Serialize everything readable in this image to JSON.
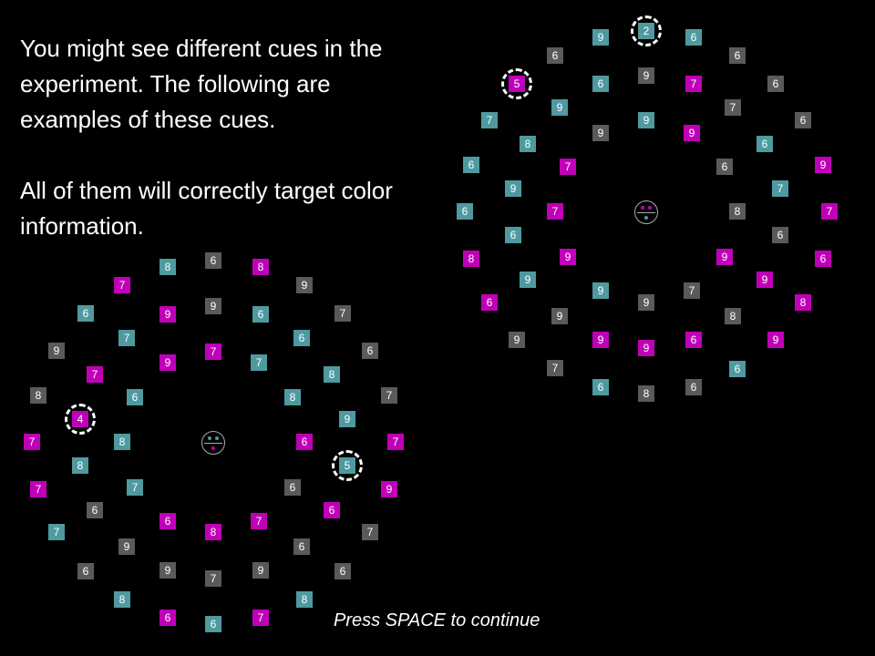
{
  "instructions": {
    "paragraph1": "You might see different cues in the experiment. The following are examples of these cues.",
    "paragraph2": "All of them will correctly target color information."
  },
  "footer": {
    "continue_prompt": "Press SPACE to continue"
  },
  "colors": {
    "background": "#000000",
    "teal": "#4e9aa0",
    "magenta": "#c000b8",
    "gray": "#5a5a5a",
    "text": "#ffffff"
  },
  "displays": [
    {
      "name": "left-display",
      "fixation": {
        "top_dots": [
          "teal",
          "teal"
        ],
        "bottom_dot": "magenta"
      },
      "cued_items": [
        "4",
        "5"
      ],
      "items": [
        {
          "d": "8",
          "c": "teal"
        },
        {
          "d": "6",
          "c": "gray"
        },
        {
          "d": "8",
          "c": "magenta"
        },
        {
          "d": "7",
          "c": "magenta"
        },
        {
          "d": "9",
          "c": "gray"
        },
        {
          "d": "6",
          "c": "teal"
        },
        {
          "d": "9",
          "c": "magenta"
        },
        {
          "d": "9",
          "c": "gray"
        },
        {
          "d": "6",
          "c": "teal"
        },
        {
          "d": "7",
          "c": "gray"
        },
        {
          "d": "7",
          "c": "teal"
        },
        {
          "d": "6",
          "c": "teal"
        },
        {
          "d": "9",
          "c": "gray"
        },
        {
          "d": "7",
          "c": "magenta"
        },
        {
          "d": "6",
          "c": "gray"
        },
        {
          "d": "9",
          "c": "magenta"
        },
        {
          "d": "7",
          "c": "teal"
        },
        {
          "d": "7",
          "c": "magenta"
        },
        {
          "d": "8",
          "c": "teal"
        },
        {
          "d": "8",
          "c": "gray"
        },
        {
          "d": "6",
          "c": "teal"
        },
        {
          "d": "8",
          "c": "teal"
        },
        {
          "d": "7",
          "c": "gray"
        },
        {
          "d": "9",
          "c": "teal"
        },
        {
          "d": "4",
          "c": "magenta",
          "cued": true
        },
        {
          "d": "7",
          "c": "magenta"
        },
        {
          "d": "8",
          "c": "teal"
        },
        {
          "d": "6",
          "c": "magenta"
        },
        {
          "d": "7",
          "c": "magenta"
        },
        {
          "d": "8",
          "c": "teal"
        },
        {
          "d": "5",
          "c": "teal",
          "cued": true
        },
        {
          "d": "7",
          "c": "magenta"
        },
        {
          "d": "7",
          "c": "teal"
        },
        {
          "d": "6",
          "c": "gray"
        },
        {
          "d": "9",
          "c": "magenta"
        },
        {
          "d": "6",
          "c": "gray"
        },
        {
          "d": "6",
          "c": "magenta"
        },
        {
          "d": "6",
          "c": "magenta"
        },
        {
          "d": "7",
          "c": "magenta"
        },
        {
          "d": "7",
          "c": "teal"
        },
        {
          "d": "8",
          "c": "magenta"
        },
        {
          "d": "7",
          "c": "gray"
        },
        {
          "d": "9",
          "c": "gray"
        },
        {
          "d": "6",
          "c": "gray"
        },
        {
          "d": "6",
          "c": "gray"
        },
        {
          "d": "9",
          "c": "gray"
        },
        {
          "d": "7",
          "c": "gray"
        },
        {
          "d": "9",
          "c": "gray"
        },
        {
          "d": "6",
          "c": "gray"
        },
        {
          "d": "8",
          "c": "teal"
        },
        {
          "d": "8",
          "c": "teal"
        },
        {
          "d": "6",
          "c": "magenta"
        },
        {
          "d": "6",
          "c": "teal"
        },
        {
          "d": "7",
          "c": "magenta"
        }
      ]
    },
    {
      "name": "right-display",
      "fixation": {
        "top_dots": [
          "magenta",
          "magenta"
        ],
        "bottom_dot": "teal"
      },
      "cued_items": [
        "2",
        "5"
      ],
      "items": [
        {
          "d": "9",
          "c": "teal"
        },
        {
          "d": "2",
          "c": "teal",
          "cued": true
        },
        {
          "d": "6",
          "c": "teal"
        },
        {
          "d": "6",
          "c": "gray"
        },
        {
          "d": "6",
          "c": "gray"
        },
        {
          "d": "9",
          "c": "gray"
        },
        {
          "d": "5",
          "c": "magenta",
          "cued": true
        },
        {
          "d": "6",
          "c": "teal"
        },
        {
          "d": "7",
          "c": "magenta"
        },
        {
          "d": "6",
          "c": "gray"
        },
        {
          "d": "9",
          "c": "teal"
        },
        {
          "d": "7",
          "c": "gray"
        },
        {
          "d": "7",
          "c": "teal"
        },
        {
          "d": "6",
          "c": "gray"
        },
        {
          "d": "9",
          "c": "gray"
        },
        {
          "d": "9",
          "c": "teal"
        },
        {
          "d": "9",
          "c": "magenta"
        },
        {
          "d": "8",
          "c": "teal"
        },
        {
          "d": "6",
          "c": "teal"
        },
        {
          "d": "6",
          "c": "teal"
        },
        {
          "d": "7",
          "c": "magenta"
        },
        {
          "d": "6",
          "c": "gray"
        },
        {
          "d": "9",
          "c": "magenta"
        },
        {
          "d": "9",
          "c": "teal"
        },
        {
          "d": "7",
          "c": "teal"
        },
        {
          "d": "6",
          "c": "teal"
        },
        {
          "d": "7",
          "c": "magenta"
        },
        {
          "d": "8",
          "c": "gray"
        },
        {
          "d": "7",
          "c": "magenta"
        },
        {
          "d": "6",
          "c": "teal"
        },
        {
          "d": "6",
          "c": "gray"
        },
        {
          "d": "8",
          "c": "magenta"
        },
        {
          "d": "9",
          "c": "magenta"
        },
        {
          "d": "9",
          "c": "magenta"
        },
        {
          "d": "6",
          "c": "magenta"
        },
        {
          "d": "9",
          "c": "teal"
        },
        {
          "d": "9",
          "c": "magenta"
        },
        {
          "d": "6",
          "c": "magenta"
        },
        {
          "d": "9",
          "c": "teal"
        },
        {
          "d": "9",
          "c": "gray"
        },
        {
          "d": "7",
          "c": "gray"
        },
        {
          "d": "8",
          "c": "magenta"
        },
        {
          "d": "9",
          "c": "gray"
        },
        {
          "d": "8",
          "c": "gray"
        },
        {
          "d": "9",
          "c": "gray"
        },
        {
          "d": "9",
          "c": "magenta"
        },
        {
          "d": "9",
          "c": "magenta"
        },
        {
          "d": "6",
          "c": "magenta"
        },
        {
          "d": "9",
          "c": "magenta"
        },
        {
          "d": "6",
          "c": "teal"
        },
        {
          "d": "7",
          "c": "gray"
        },
        {
          "d": "6",
          "c": "teal"
        },
        {
          "d": "8",
          "c": "gray"
        },
        {
          "d": "6",
          "c": "gray"
        }
      ]
    }
  ]
}
